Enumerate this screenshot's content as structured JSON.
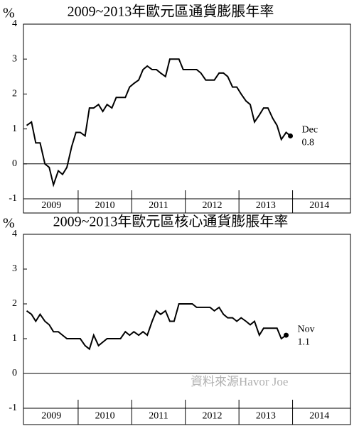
{
  "chart_data": [
    {
      "type": "line",
      "title": "2009~2013年歐元區通貨膨脹年率",
      "y_unit": "%",
      "xlim": [
        2008.98,
        2015.08
      ],
      "xticks": [
        2009,
        2010,
        2011,
        2012,
        2013,
        2014
      ],
      "ylim": [
        -1,
        4
      ],
      "yticks": [
        -1,
        0,
        1,
        2,
        3,
        4
      ],
      "zero_line": true,
      "annotations": [
        "Dec",
        "0.8"
      ],
      "series": [
        {
          "color": "#000000",
          "x": [
            2009.04,
            2009.13,
            2009.21,
            2009.29,
            2009.38,
            2009.46,
            2009.54,
            2009.63,
            2009.71,
            2009.79,
            2009.88,
            2009.96,
            2010.04,
            2010.13,
            2010.21,
            2010.29,
            2010.38,
            2010.46,
            2010.54,
            2010.63,
            2010.71,
            2010.79,
            2010.88,
            2010.96,
            2011.04,
            2011.13,
            2011.21,
            2011.29,
            2011.38,
            2011.46,
            2011.54,
            2011.63,
            2011.71,
            2011.79,
            2011.88,
            2011.96,
            2012.04,
            2012.13,
            2012.21,
            2012.29,
            2012.38,
            2012.46,
            2012.54,
            2012.63,
            2012.71,
            2012.79,
            2012.88,
            2012.96,
            2013.04,
            2013.13,
            2013.21,
            2013.29,
            2013.38,
            2013.46,
            2013.54,
            2013.63,
            2013.71,
            2013.79,
            2013.88,
            2013.96
          ],
          "values": [
            1.1,
            1.2,
            0.6,
            0.6,
            0.0,
            -0.1,
            -0.6,
            -0.2,
            -0.3,
            -0.1,
            0.5,
            0.9,
            0.9,
            0.8,
            1.6,
            1.6,
            1.7,
            1.5,
            1.7,
            1.6,
            1.9,
            1.9,
            1.9,
            2.2,
            2.3,
            2.4,
            2.7,
            2.8,
            2.7,
            2.7,
            2.6,
            2.5,
            3.0,
            3.0,
            3.0,
            2.7,
            2.7,
            2.7,
            2.7,
            2.6,
            2.4,
            2.4,
            2.4,
            2.6,
            2.6,
            2.5,
            2.2,
            2.2,
            2.0,
            1.8,
            1.7,
            1.2,
            1.4,
            1.6,
            1.6,
            1.3,
            1.1,
            0.7,
            0.9,
            0.8
          ]
        }
      ]
    },
    {
      "type": "line",
      "title": "2009~2013年歐元區核心通貨膨脹年率",
      "y_unit": "%",
      "xlim": [
        2008.98,
        2015.08
      ],
      "xticks": [
        2009,
        2010,
        2011,
        2012,
        2013,
        2014
      ],
      "ylim": [
        -1,
        4
      ],
      "yticks": [
        -1,
        0,
        1,
        2,
        3,
        4
      ],
      "zero_line": true,
      "annotations": [
        "Nov",
        "1.1"
      ],
      "source": "資料來源Havor    Joe",
      "series": [
        {
          "color": "#000000",
          "x": [
            2009.04,
            2009.13,
            2009.21,
            2009.29,
            2009.38,
            2009.46,
            2009.54,
            2009.63,
            2009.71,
            2009.79,
            2009.88,
            2009.96,
            2010.04,
            2010.13,
            2010.21,
            2010.29,
            2010.38,
            2010.46,
            2010.54,
            2010.63,
            2010.71,
            2010.79,
            2010.88,
            2010.96,
            2011.04,
            2011.13,
            2011.21,
            2011.29,
            2011.38,
            2011.46,
            2011.54,
            2011.63,
            2011.71,
            2011.79,
            2011.88,
            2011.96,
            2012.04,
            2012.13,
            2012.21,
            2012.29,
            2012.38,
            2012.46,
            2012.54,
            2012.63,
            2012.71,
            2012.79,
            2012.88,
            2012.96,
            2013.04,
            2013.13,
            2013.21,
            2013.29,
            2013.38,
            2013.46,
            2013.54,
            2013.63,
            2013.71,
            2013.79,
            2013.88
          ],
          "values": [
            1.8,
            1.7,
            1.5,
            1.7,
            1.5,
            1.4,
            1.2,
            1.2,
            1.1,
            1.0,
            1.0,
            1.0,
            1.0,
            0.8,
            0.7,
            1.1,
            0.8,
            0.9,
            1.0,
            1.0,
            1.0,
            1.0,
            1.2,
            1.1,
            1.2,
            1.1,
            1.2,
            1.1,
            1.5,
            1.8,
            1.7,
            1.8,
            1.5,
            1.5,
            2.0,
            2.0,
            2.0,
            2.0,
            1.9,
            1.9,
            1.9,
            1.9,
            1.8,
            1.9,
            1.7,
            1.6,
            1.6,
            1.5,
            1.6,
            1.5,
            1.4,
            1.5,
            1.1,
            1.3,
            1.3,
            1.3,
            1.3,
            1.0,
            1.1
          ]
        }
      ]
    }
  ]
}
